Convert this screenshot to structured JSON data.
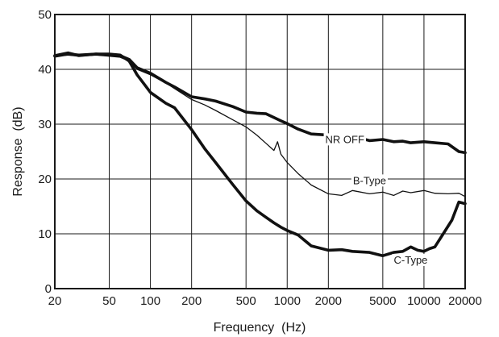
{
  "chart_data": {
    "type": "line",
    "xlabel": "Frequency  (Hz)",
    "ylabel": "Response  (dB)",
    "x_scale": "log",
    "xlim": [
      20,
      20000
    ],
    "ylim": [
      0,
      50
    ],
    "grid": true,
    "xticks": [
      20,
      50,
      100,
      200,
      500,
      1000,
      2000,
      5000,
      10000,
      20000
    ],
    "xtick_labels": [
      "20",
      "50",
      "100",
      "200",
      "500",
      "1000",
      "2000",
      "5000",
      "10000",
      "20000"
    ],
    "x_gridlines": [
      20,
      50,
      100,
      200,
      500,
      1000,
      2000,
      5000,
      10000,
      20000
    ],
    "yticks": [
      0,
      10,
      20,
      30,
      40,
      50
    ],
    "ytick_labels": [
      "0",
      "10",
      "20",
      "30",
      "40",
      "50"
    ],
    "series": [
      {
        "name": "NR OFF",
        "line_weight": "heavy",
        "label_at": [
          1900,
          27.3
        ],
        "label_anchor": "start",
        "x": [
          20,
          25,
          30,
          40,
          50,
          60,
          70,
          80,
          100,
          130,
          150,
          200,
          250,
          300,
          400,
          500,
          600,
          700,
          800,
          900,
          1000,
          1200,
          1500,
          2000,
          2500,
          3000,
          4000,
          5000,
          6000,
          7000,
          8000,
          10000,
          12000,
          15000,
          18000,
          20000
        ],
        "y": [
          42.4,
          42.8,
          42.6,
          42.8,
          42.6,
          42.5,
          41.8,
          40.3,
          39.3,
          37.6,
          36.8,
          35.0,
          34.6,
          34.2,
          33.2,
          32.2,
          32.0,
          31.9,
          31.2,
          30.6,
          30.1,
          29.1,
          28.2,
          28.0,
          27.5,
          27.8,
          27.0,
          27.2,
          26.8,
          26.9,
          26.6,
          26.8,
          26.6,
          26.4,
          25.0,
          24.8
        ]
      },
      {
        "name": "B-Type",
        "line_weight": "thin",
        "label_at": [
          4000,
          19.8
        ],
        "label_anchor": "middle",
        "x": [
          20,
          25,
          30,
          40,
          50,
          60,
          70,
          80,
          100,
          130,
          150,
          200,
          250,
          300,
          400,
          500,
          600,
          700,
          800,
          850,
          900,
          1000,
          1200,
          1500,
          2000,
          2500,
          3000,
          4000,
          5000,
          6000,
          7000,
          8000,
          10000,
          12000,
          15000,
          18000,
          20000
        ],
        "y": [
          42.4,
          42.6,
          42.4,
          42.6,
          42.4,
          42.2,
          41.5,
          40.0,
          39.0,
          37.5,
          36.5,
          34.5,
          33.5,
          32.5,
          30.8,
          29.5,
          28.0,
          26.5,
          25.2,
          26.8,
          24.5,
          23.0,
          21.0,
          18.9,
          17.3,
          17.0,
          17.9,
          17.3,
          17.6,
          17.0,
          17.8,
          17.5,
          17.9,
          17.4,
          17.3,
          17.4,
          16.8
        ]
      },
      {
        "name": "C-Type",
        "line_weight": "heavy",
        "label_at": [
          8000,
          5.3
        ],
        "label_anchor": "middle",
        "x": [
          20,
          25,
          30,
          40,
          50,
          60,
          70,
          80,
          100,
          130,
          150,
          200,
          250,
          300,
          400,
          500,
          600,
          700,
          800,
          900,
          1000,
          1200,
          1500,
          2000,
          2500,
          3000,
          4000,
          5000,
          6000,
          7000,
          8000,
          9000,
          10000,
          11000,
          12000,
          14000,
          16000,
          18000,
          20000
        ],
        "y": [
          42.5,
          43.0,
          42.5,
          42.8,
          42.8,
          42.6,
          41.5,
          39.0,
          35.8,
          33.8,
          33.0,
          29.0,
          25.5,
          23.0,
          19.0,
          16.0,
          14.2,
          13.0,
          12.0,
          11.2,
          10.6,
          9.8,
          7.8,
          7.0,
          7.1,
          6.8,
          6.6,
          6.0,
          6.6,
          6.8,
          7.6,
          7.0,
          6.8,
          7.3,
          7.6,
          10.2,
          12.5,
          15.8,
          15.5
        ]
      }
    ]
  }
}
